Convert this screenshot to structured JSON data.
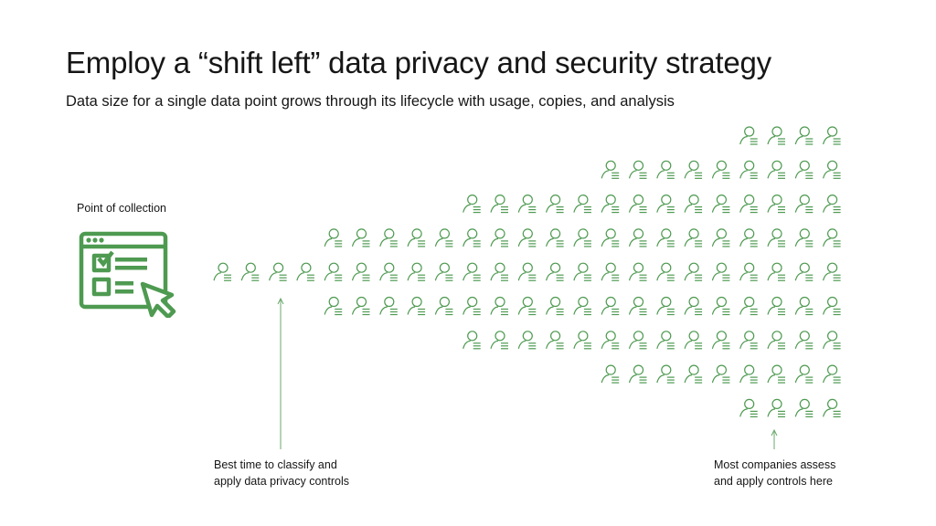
{
  "title": "Employ a “shift left” data privacy and security strategy",
  "subtitle": "Data size for a single data point grows through its lifecycle with usage, copies, and analysis",
  "collection": {
    "label": "Point of collection",
    "icon": "browser-form-cursor-icon"
  },
  "annotations": {
    "best_time": [
      "Best time to classify and",
      "apply data privacy controls"
    ],
    "most_companies": [
      "Most companies assess",
      "and apply controls here"
    ]
  },
  "data_grid": {
    "icon": "user-record-icon",
    "row_counts": [
      4,
      9,
      14,
      19,
      23,
      19,
      14,
      9,
      4
    ]
  },
  "colors": {
    "accent": "#4e9a51",
    "text": "#161616",
    "arrow": "#6aa86c"
  }
}
